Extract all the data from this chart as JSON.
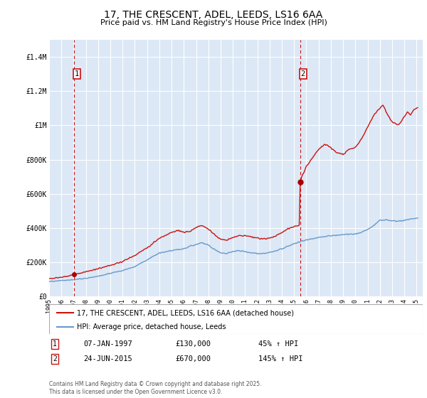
{
  "title": "17, THE CRESCENT, ADEL, LEEDS, LS16 6AA",
  "subtitle": "Price paid vs. HM Land Registry's House Price Index (HPI)",
  "ylim": [
    0,
    1500000
  ],
  "yticks": [
    0,
    200000,
    400000,
    600000,
    800000,
    1000000,
    1200000,
    1400000
  ],
  "ytick_labels": [
    "£0",
    "£200K",
    "£400K",
    "£600K",
    "£800K",
    "£1M",
    "£1.2M",
    "£1.4M"
  ],
  "xlim_start": 1995.0,
  "xlim_end": 2025.5,
  "xticks": [
    1995,
    1996,
    1997,
    1998,
    1999,
    2000,
    2001,
    2002,
    2003,
    2004,
    2005,
    2006,
    2007,
    2008,
    2009,
    2010,
    2011,
    2012,
    2013,
    2014,
    2015,
    2016,
    2017,
    2018,
    2019,
    2020,
    2021,
    2022,
    2023,
    2024,
    2025
  ],
  "sale1_x": 1997.03,
  "sale1_y": 130000,
  "sale1_label": "1",
  "sale1_date": "07-JAN-1997",
  "sale1_price": "£130,000",
  "sale1_hpi": "45% ↑ HPI",
  "sale2_x": 2015.48,
  "sale2_y": 670000,
  "sale2_label": "2",
  "sale2_date": "24-JUN-2015",
  "sale2_price": "£670,000",
  "sale2_hpi": "145% ↑ HPI",
  "hpi_line_color": "#6699cc",
  "price_line_color": "#cc1111",
  "sale_dot_color": "#aa0000",
  "dashed_line_color": "#cc1111",
  "figure_bg_color": "#ffffff",
  "plot_bg_color": "#dce8f5",
  "grid_color": "#ffffff",
  "legend1_label": "17, THE CRESCENT, ADEL, LEEDS, LS16 6AA (detached house)",
  "legend2_label": "HPI: Average price, detached house, Leeds",
  "footer": "Contains HM Land Registry data © Crown copyright and database right 2025.\nThis data is licensed under the Open Government Licence v3.0."
}
